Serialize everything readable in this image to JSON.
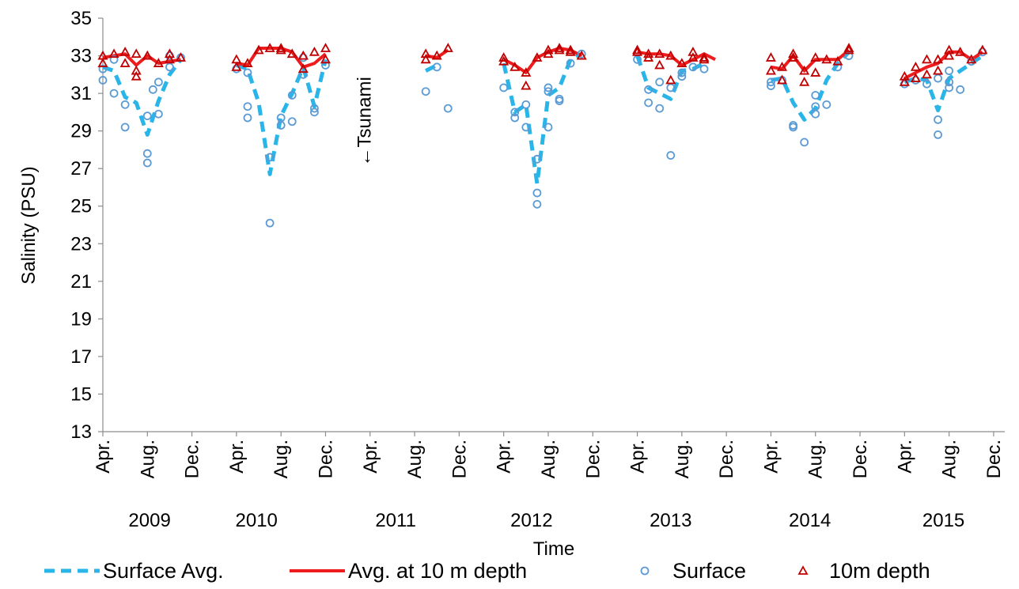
{
  "chart_data": {
    "type": "line",
    "xlabel": "Time",
    "ylabel": "Salinity (PSU)",
    "ylim": [
      13,
      35
    ],
    "yticks": [
      13,
      15,
      17,
      19,
      21,
      23,
      25,
      27,
      29,
      31,
      33,
      35
    ],
    "grid": "none",
    "legend_position": "bottom",
    "xlim_months": [
      0,
      81
    ],
    "x_ticks": [
      {
        "month": 0,
        "label": "Apr."
      },
      {
        "month": 4,
        "label": "Aug."
      },
      {
        "month": 8,
        "label": "Dec."
      },
      {
        "month": 12,
        "label": "Apr."
      },
      {
        "month": 16,
        "label": "Aug."
      },
      {
        "month": 20,
        "label": "Dec."
      },
      {
        "month": 24,
        "label": "Apr."
      },
      {
        "month": 28,
        "label": "Aug."
      },
      {
        "month": 32,
        "label": "Dec."
      },
      {
        "month": 36,
        "label": "Apr."
      },
      {
        "month": 40,
        "label": "Aug."
      },
      {
        "month": 44,
        "label": "Dec."
      },
      {
        "month": 48,
        "label": "Apr."
      },
      {
        "month": 52,
        "label": "Aug."
      },
      {
        "month": 56,
        "label": "Dec."
      },
      {
        "month": 60,
        "label": "Apr."
      },
      {
        "month": 64,
        "label": "Aug."
      },
      {
        "month": 68,
        "label": "Dec."
      },
      {
        "month": 72,
        "label": "Apr."
      },
      {
        "month": 76,
        "label": "Aug."
      },
      {
        "month": 80,
        "label": "Dec."
      }
    ],
    "year_labels": [
      {
        "month": 4.2,
        "label": "2009"
      },
      {
        "month": 13.8,
        "label": "2010"
      },
      {
        "month": 26.3,
        "label": "2011"
      },
      {
        "month": 38.5,
        "label": "2012"
      },
      {
        "month": 51.0,
        "label": "2013"
      },
      {
        "month": 63.5,
        "label": "2014"
      },
      {
        "month": 75.5,
        "label": "2015"
      }
    ],
    "annotation": {
      "text": "←Tsunami",
      "month": 23.5,
      "y": 33.0
    },
    "series": [
      {
        "name": "Surface Avg.",
        "color": "#29b5e8",
        "style": "dashed",
        "segments": [
          [
            [
              0,
              32.4
            ],
            [
              1,
              32.2
            ],
            [
              2,
              30.8
            ],
            [
              3,
              30.5
            ],
            [
              4,
              28.8
            ],
            [
              5,
              30.6
            ],
            [
              6,
              32.0
            ],
            [
              7,
              32.8
            ]
          ],
          [
            [
              12,
              32.5
            ],
            [
              13,
              32.3
            ],
            [
              14,
              30.5
            ],
            [
              15,
              26.7
            ],
            [
              16,
              29.8
            ],
            [
              17,
              31.0
            ],
            [
              18,
              32.4
            ],
            [
              19,
              30.3
            ],
            [
              20,
              32.8
            ]
          ],
          [
            [
              29,
              32.2
            ],
            [
              30,
              32.5
            ]
          ],
          [
            [
              36,
              32.6
            ],
            [
              37,
              30.0
            ],
            [
              38,
              30.4
            ],
            [
              39,
              26.2
            ],
            [
              40,
              30.9
            ],
            [
              41,
              31.3
            ],
            [
              42,
              32.8
            ],
            [
              43,
              33.1
            ]
          ],
          [
            [
              48,
              33.0
            ],
            [
              49,
              31.3
            ],
            [
              50,
              31.0
            ],
            [
              51,
              30.7
            ],
            [
              52,
              32.2
            ],
            [
              53,
              32.3
            ],
            [
              54,
              32.6
            ]
          ],
          [
            [
              60,
              31.7
            ],
            [
              61,
              31.8
            ],
            [
              62,
              30.5
            ],
            [
              63,
              29.6
            ],
            [
              64,
              30.2
            ],
            [
              65,
              31.7
            ],
            [
              66,
              32.6
            ],
            [
              67,
              33.2
            ]
          ],
          [
            [
              72,
              31.6
            ],
            [
              73,
              31.8
            ],
            [
              74,
              31.7
            ],
            [
              75,
              30.1
            ],
            [
              76,
              31.8
            ],
            [
              77,
              32.2
            ],
            [
              78,
              32.6
            ],
            [
              79,
              33.0
            ]
          ]
        ]
      },
      {
        "name": "Avg. at 10 m depth",
        "color": "#ee1c1c",
        "style": "solid",
        "segments": [
          [
            [
              0,
              32.9
            ],
            [
              1,
              33.0
            ],
            [
              2,
              33.1
            ],
            [
              3,
              32.5
            ],
            [
              4,
              33.0
            ],
            [
              5,
              32.6
            ],
            [
              6,
              32.7
            ],
            [
              7,
              32.8
            ]
          ],
          [
            [
              12,
              32.6
            ],
            [
              13,
              32.5
            ],
            [
              14,
              33.4
            ],
            [
              15,
              33.4
            ],
            [
              16,
              33.4
            ],
            [
              17,
              33.2
            ],
            [
              18,
              32.4
            ],
            [
              19,
              32.6
            ],
            [
              20,
              33.1
            ]
          ],
          [
            [
              29,
              33.0
            ],
            [
              30,
              32.9
            ],
            [
              31,
              33.3
            ]
          ],
          [
            [
              36,
              32.8
            ],
            [
              37,
              32.5
            ],
            [
              38,
              32.1
            ],
            [
              39,
              32.9
            ],
            [
              40,
              33.2
            ],
            [
              41,
              33.4
            ],
            [
              42,
              33.3
            ],
            [
              43,
              33.0
            ]
          ],
          [
            [
              48,
              33.2
            ],
            [
              49,
              33.1
            ],
            [
              50,
              33.1
            ],
            [
              51,
              33.0
            ],
            [
              52,
              32.5
            ],
            [
              53,
              32.8
            ],
            [
              54,
              33.1
            ],
            [
              55,
              32.8
            ]
          ],
          [
            [
              60,
              32.4
            ],
            [
              61,
              32.3
            ],
            [
              62,
              33.0
            ],
            [
              63,
              32.2
            ],
            [
              64,
              32.8
            ],
            [
              65,
              32.8
            ],
            [
              66,
              32.8
            ],
            [
              67,
              33.3
            ]
          ],
          [
            [
              72,
              31.8
            ],
            [
              73,
              32.1
            ],
            [
              74,
              32.4
            ],
            [
              75,
              32.6
            ],
            [
              76,
              33.2
            ],
            [
              77,
              33.2
            ],
            [
              78,
              32.8
            ],
            [
              79,
              33.2
            ]
          ]
        ]
      },
      {
        "name": "Surface",
        "color": "#5b9bd5",
        "marker": "circle",
        "points": [
          [
            0,
            31.7
          ],
          [
            0,
            32.3
          ],
          [
            1,
            31.0
          ],
          [
            1,
            32.8
          ],
          [
            2,
            30.4
          ],
          [
            2,
            29.2
          ],
          [
            4,
            27.3
          ],
          [
            4,
            27.8
          ],
          [
            4,
            29.8
          ],
          [
            4.5,
            31.2
          ],
          [
            5,
            31.6
          ],
          [
            5,
            29.9
          ],
          [
            6,
            32.4
          ],
          [
            6,
            33.0
          ],
          [
            7,
            32.9
          ],
          [
            12,
            32.3
          ],
          [
            13,
            32.1
          ],
          [
            13,
            30.3
          ],
          [
            13,
            29.7
          ],
          [
            15,
            27.6
          ],
          [
            15,
            24.1
          ],
          [
            16,
            29.3
          ],
          [
            16,
            29.7
          ],
          [
            17,
            29.5
          ],
          [
            17,
            30.9
          ],
          [
            18,
            32.0
          ],
          [
            18,
            32.9
          ],
          [
            19,
            30.2
          ],
          [
            19,
            30.0
          ],
          [
            20,
            32.5
          ],
          [
            29,
            31.1
          ],
          [
            30,
            32.4
          ],
          [
            31,
            30.2
          ],
          [
            36,
            31.3
          ],
          [
            37,
            30.0
          ],
          [
            37,
            29.7
          ],
          [
            38,
            29.2
          ],
          [
            38,
            30.4
          ],
          [
            39,
            25.1
          ],
          [
            39,
            25.7
          ],
          [
            39,
            27.5
          ],
          [
            40,
            29.2
          ],
          [
            40,
            31.1
          ],
          [
            40,
            31.3
          ],
          [
            41,
            30.7
          ],
          [
            41,
            30.6
          ],
          [
            42,
            32.6
          ],
          [
            43,
            33.1
          ],
          [
            48,
            32.8
          ],
          [
            49,
            30.5
          ],
          [
            49,
            31.2
          ],
          [
            50,
            30.2
          ],
          [
            50,
            31.6
          ],
          [
            51,
            27.7
          ],
          [
            51,
            31.3
          ],
          [
            52,
            31.9
          ],
          [
            52,
            32.1
          ],
          [
            53,
            32.4
          ],
          [
            54,
            32.3
          ],
          [
            60,
            31.4
          ],
          [
            60,
            31.6
          ],
          [
            61,
            31.7
          ],
          [
            62,
            29.3
          ],
          [
            62,
            29.2
          ],
          [
            63,
            28.4
          ],
          [
            64,
            30.3
          ],
          [
            64,
            29.9
          ],
          [
            64,
            30.9
          ],
          [
            65,
            30.4
          ],
          [
            66,
            32.4
          ],
          [
            67,
            33.0
          ],
          [
            72,
            31.5
          ],
          [
            73,
            31.7
          ],
          [
            74,
            31.5
          ],
          [
            75,
            29.6
          ],
          [
            75,
            28.8
          ],
          [
            75,
            31.8
          ],
          [
            76,
            31.3
          ],
          [
            76,
            31.6
          ],
          [
            76,
            32.2
          ],
          [
            77,
            31.2
          ],
          [
            78,
            32.7
          ],
          [
            79,
            33.2
          ]
        ]
      },
      {
        "name": "10m depth",
        "color": "#c00000",
        "marker": "triangle",
        "points": [
          [
            0,
            32.6
          ],
          [
            0,
            33.0
          ],
          [
            1,
            33.1
          ],
          [
            2,
            33.2
          ],
          [
            2,
            32.6
          ],
          [
            3,
            31.9
          ],
          [
            3,
            32.2
          ],
          [
            3,
            33.1
          ],
          [
            4,
            33.0
          ],
          [
            5,
            32.6
          ],
          [
            6,
            32.8
          ],
          [
            6,
            33.1
          ],
          [
            7,
            32.9
          ],
          [
            12,
            32.4
          ],
          [
            12,
            32.8
          ],
          [
            13,
            32.6
          ],
          [
            14,
            33.3
          ],
          [
            15,
            33.4
          ],
          [
            16,
            33.3
          ],
          [
            16,
            33.4
          ],
          [
            17,
            33.1
          ],
          [
            18,
            32.3
          ],
          [
            18,
            33.0
          ],
          [
            19,
            33.2
          ],
          [
            20,
            32.8
          ],
          [
            20,
            33.4
          ],
          [
            29,
            32.8
          ],
          [
            29,
            33.1
          ],
          [
            30,
            33.0
          ],
          [
            31,
            33.4
          ],
          [
            36,
            32.7
          ],
          [
            36,
            32.9
          ],
          [
            37,
            32.4
          ],
          [
            38,
            32.1
          ],
          [
            38,
            31.4
          ],
          [
            39,
            32.9
          ],
          [
            40,
            33.1
          ],
          [
            40,
            33.3
          ],
          [
            41,
            33.3
          ],
          [
            41,
            33.4
          ],
          [
            42,
            33.2
          ],
          [
            42,
            33.3
          ],
          [
            43,
            33.0
          ],
          [
            48,
            33.3
          ],
          [
            48,
            33.2
          ],
          [
            49,
            33.1
          ],
          [
            49,
            32.9
          ],
          [
            50,
            33.1
          ],
          [
            50,
            32.5
          ],
          [
            51,
            33.0
          ],
          [
            51,
            31.7
          ],
          [
            52,
            32.6
          ],
          [
            53,
            32.9
          ],
          [
            53,
            33.2
          ],
          [
            54,
            32.8
          ],
          [
            54,
            32.9
          ],
          [
            60,
            32.2
          ],
          [
            60,
            32.9
          ],
          [
            61,
            31.7
          ],
          [
            61,
            32.4
          ],
          [
            62,
            33.1
          ],
          [
            62,
            32.9
          ],
          [
            63,
            31.6
          ],
          [
            63,
            32.2
          ],
          [
            64,
            32.9
          ],
          [
            64,
            32.1
          ],
          [
            65,
            32.8
          ],
          [
            66,
            32.7
          ],
          [
            67,
            33.3
          ],
          [
            67,
            33.4
          ],
          [
            72,
            31.6
          ],
          [
            72,
            31.9
          ],
          [
            73,
            31.8
          ],
          [
            73,
            32.4
          ],
          [
            74,
            32.8
          ],
          [
            74,
            32.0
          ],
          [
            75,
            32.2
          ],
          [
            75,
            32.8
          ],
          [
            76,
            33.0
          ],
          [
            76,
            33.3
          ],
          [
            77,
            33.2
          ],
          [
            78,
            32.8
          ],
          [
            79,
            33.3
          ]
        ]
      }
    ]
  }
}
